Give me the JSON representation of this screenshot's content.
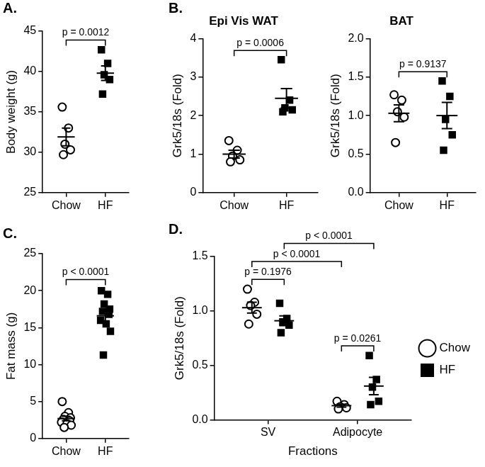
{
  "chart_data": [
    {
      "panel": "A.",
      "type": "scatter",
      "categories": [
        "Chow",
        "HF"
      ],
      "y_label": "Body weight (g)",
      "ylim": [
        25,
        45
      ],
      "yticks": [
        25,
        30,
        35,
        40,
        45
      ],
      "grid": false,
      "series": [
        {
          "name": "Chow",
          "marker": "circle-open",
          "color": "#000000",
          "values": [
            [
              35.6,
              33.0,
              31.0,
              30.3,
              29.7
            ],
            null
          ],
          "mean": [
            31.9,
            null
          ],
          "sem": [
            1.1,
            null
          ]
        },
        {
          "name": "HF",
          "marker": "square",
          "color": "#000000",
          "values": [
            null,
            [
              42.7,
              41.0,
              39.6,
              39.0,
              37.2
            ]
          ],
          "mean": [
            null,
            39.8
          ],
          "sem": [
            null,
            0.9
          ]
        }
      ],
      "annotations": [
        {
          "text": "p = 0.0012",
          "from": [
            0,
            0
          ],
          "to": [
            1,
            1
          ]
        }
      ]
    },
    {
      "panel": "B.",
      "type": "scatter",
      "title": "Epi Vis WAT",
      "categories": [
        "Chow",
        "HF"
      ],
      "y_label": "Grk5/18s (Fold)",
      "ylim": [
        0,
        4
      ],
      "yticks": [
        0,
        1,
        2,
        3,
        4
      ],
      "grid": false,
      "series": [
        {
          "name": "Chow",
          "marker": "circle-open",
          "color": "#000000",
          "values": [
            [
              1.35,
              1.1,
              0.95,
              0.85,
              0.8
            ],
            null
          ],
          "mean": [
            1.0,
            null
          ],
          "sem": [
            0.1,
            null
          ]
        },
        {
          "name": "HF",
          "marker": "square",
          "color": "#000000",
          "values": [
            null,
            [
              3.45,
              2.4,
              2.2,
              2.15,
              2.1
            ]
          ],
          "mean": [
            null,
            2.45
          ],
          "sem": [
            null,
            0.25
          ]
        }
      ],
      "annotations": [
        {
          "text": "p = 0.0006",
          "from": [
            0,
            0
          ],
          "to": [
            1,
            1
          ]
        }
      ]
    },
    {
      "type": "scatter",
      "title": "BAT",
      "categories": [
        "Chow",
        "HF"
      ],
      "y_label": "Grk5/18s (Fold)",
      "ylim": [
        0,
        2
      ],
      "yticks": [
        {
          "value": 0,
          "label": "0.0"
        },
        0.5,
        {
          "value": 1,
          "label": "1.0"
        },
        1.5,
        {
          "value": 2,
          "label": "2.0"
        }
      ],
      "grid": false,
      "series": [
        {
          "name": "Chow",
          "marker": "circle-open",
          "color": "#000000",
          "values": [
            [
              1.27,
              1.2,
              1.05,
              0.98,
              0.65
            ],
            null
          ],
          "mean": [
            1.03,
            null
          ],
          "sem": [
            0.11,
            null
          ]
        },
        {
          "name": "HF",
          "marker": "square",
          "color": "#000000",
          "values": [
            null,
            [
              1.45,
              1.25,
              0.95,
              0.75,
              0.55
            ]
          ],
          "mean": [
            null,
            1.0
          ],
          "sem": [
            null,
            0.17
          ]
        }
      ],
      "annotations": [
        {
          "text": "p = 0.9137",
          "from": [
            0,
            0
          ],
          "to": [
            1,
            1
          ]
        }
      ]
    },
    {
      "panel": "C.",
      "type": "scatter",
      "categories": [
        "Chow",
        "HF"
      ],
      "y_label": "Fat mass (g)",
      "ylim": [
        0,
        25
      ],
      "yticks": [
        0,
        5,
        10,
        15,
        20,
        25
      ],
      "grid": false,
      "series": [
        {
          "name": "Chow",
          "marker": "circle-open",
          "color": "#000000",
          "values": [
            [
              5.0,
              3.5,
              3.0,
              2.8,
              2.6,
              2.4,
              2.2,
              2.0,
              1.8,
              1.5
            ],
            null
          ],
          "mean": [
            2.7,
            null
          ],
          "sem": [
            0.3,
            null
          ]
        },
        {
          "name": "HF",
          "marker": "square",
          "color": "#000000",
          "values": [
            null,
            [
              20.0,
              19.5,
              18.2,
              17.5,
              17.2,
              16.8,
              16.0,
              15.5,
              14.5,
              11.3
            ]
          ],
          "mean": [
            null,
            16.6
          ],
          "sem": [
            null,
            0.8
          ]
        }
      ],
      "annotations": [
        {
          "text": "p < 0.0001",
          "from": [
            0,
            0
          ],
          "to": [
            1,
            1
          ]
        }
      ]
    },
    {
      "panel": "D.",
      "type": "scatter",
      "categories": [
        "SV",
        "Adipocyte"
      ],
      "x_label": "Fractions",
      "y_label": "Grk5/18s (Fold)",
      "ylim": [
        0,
        1.5
      ],
      "yticks": [
        {
          "value": 0,
          "label": "0.0"
        },
        0.5,
        {
          "value": 1,
          "label": "1.0"
        },
        1.5
      ],
      "grid": false,
      "legend": "right",
      "series": [
        {
          "name": "Chow",
          "marker": "circle-open",
          "color": "#000000",
          "values": [
            [
              1.2,
              1.08,
              1.05,
              0.97,
              0.88
            ],
            [
              0.17,
              0.14,
              0.12,
              0.11,
              0.1
            ]
          ],
          "mean": [
            1.03,
            0.13
          ],
          "sem": [
            0.05,
            0.013
          ]
        },
        {
          "name": "HF",
          "marker": "square",
          "color": "#000000",
          "values": [
            [
              1.07,
              0.93,
              0.9,
              0.87,
              0.8
            ],
            [
              0.59,
              0.37,
              0.3,
              0.17,
              0.14
            ]
          ],
          "mean": [
            0.91,
            0.31
          ],
          "sem": [
            0.045,
            0.08
          ]
        }
      ],
      "annotations": [
        {
          "text": "p = 0.1976",
          "from": [
            0,
            0
          ],
          "to": [
            1,
            0
          ]
        },
        {
          "text": "p = 0.0261",
          "from": [
            0,
            1
          ],
          "to": [
            1,
            1
          ]
        },
        {
          "text": "p < 0.0001",
          "from": [
            0,
            0
          ],
          "to": [
            0,
            1
          ]
        },
        {
          "text": "p < 0.0001",
          "from": [
            1,
            0
          ],
          "to": [
            1,
            1
          ]
        }
      ]
    }
  ]
}
